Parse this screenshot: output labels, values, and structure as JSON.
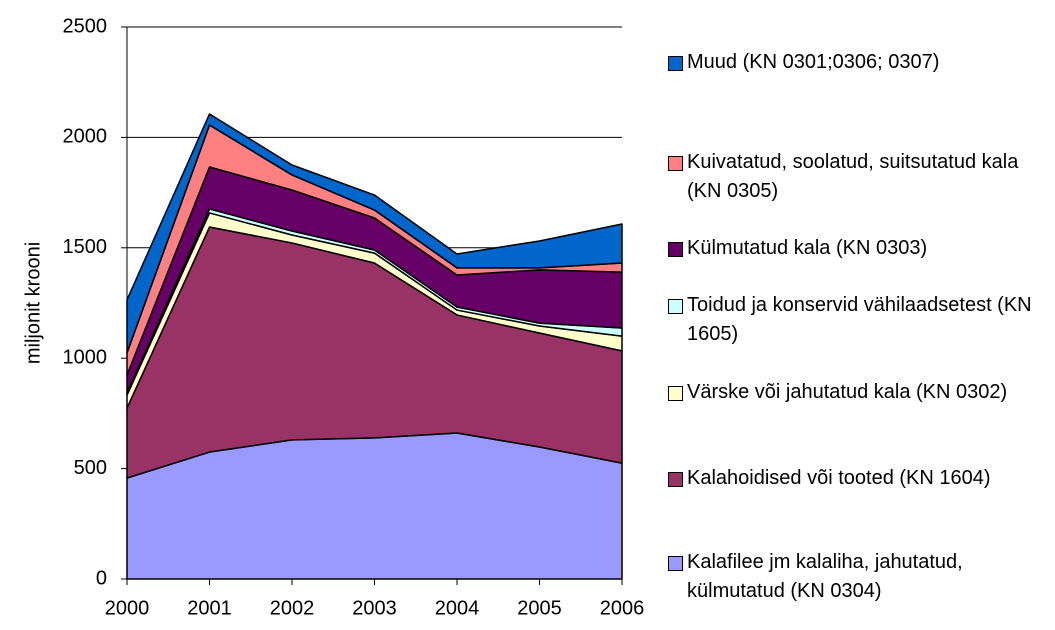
{
  "chart_data": {
    "type": "area",
    "stacked": true,
    "y_label": "miljonit krooni",
    "x": [
      2000,
      2001,
      2002,
      2003,
      2004,
      2005,
      2006
    ],
    "xlim": [
      2000,
      2006
    ],
    "xticks": [
      2000,
      2001,
      2002,
      2003,
      2004,
      2005,
      2006
    ],
    "ylim": [
      0,
      2500
    ],
    "yticks": [
      0,
      500,
      1000,
      1500,
      2000,
      2500
    ],
    "grid": true,
    "series": [
      {
        "name": "Kalafilee jm kalaliha, jahutatud, külmutatud (KN 0304)",
        "color": "#9999ff",
        "values": [
          457,
          575,
          630,
          639,
          661,
          598,
          525
        ]
      },
      {
        "name": "Kalahoidised või tooted (KN 1604)",
        "color": "#993366",
        "values": [
          317,
          1019,
          892,
          792,
          535,
          516,
          508
        ]
      },
      {
        "name": "Värske või jahutatud kala (KN 0302)",
        "color": "#ffffcc",
        "values": [
          59,
          64,
          36,
          45,
          22,
          32,
          67
        ]
      },
      {
        "name": "Toidud ja konservid vähilaadsetest (KN 1605)",
        "color": "#ccffff",
        "values": [
          9,
          18,
          18,
          14,
          14,
          13,
          37
        ]
      },
      {
        "name": "Külmutatud kala (KN 0303)",
        "color": "#660066",
        "values": [
          82,
          190,
          186,
          145,
          145,
          241,
          253
        ]
      },
      {
        "name": "Kuivatatud, soolatud, suitsutatud kala (KN 0305)",
        "color": "#ff8080",
        "values": [
          100,
          190,
          68,
          36,
          32,
          9,
          41
        ]
      },
      {
        "name": "Muud (KN 0301;0306; 0307)",
        "color": "#0066cc",
        "values": [
          240,
          50,
          45,
          68,
          63,
          122,
          177
        ]
      }
    ]
  }
}
